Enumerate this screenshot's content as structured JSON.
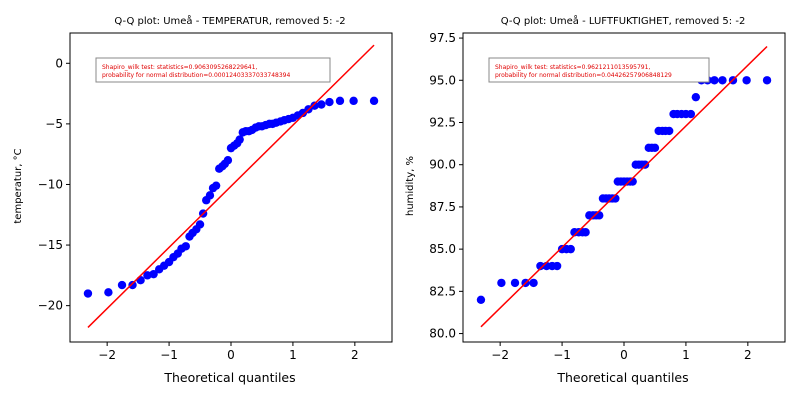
{
  "chart_data": [
    {
      "type": "scatter",
      "title": "Q-Q plot: Umeå - TEMPERATUR, removed 5: -2",
      "xlabel": "Theoretical quantiles",
      "ylabel": "temperatur, °C",
      "xlim": [
        -2.6,
        2.6
      ],
      "ylim": [
        -23,
        2.5
      ],
      "xticks": [
        -2,
        -1,
        0,
        1,
        2
      ],
      "yticks": [
        -20,
        -15,
        -10,
        -5,
        0
      ],
      "grid": false,
      "annotation": [
        "Shapiro_wilk test: statistics=0.9063095268229641,",
        " probability for normal distribution=0.00012403337033748394"
      ],
      "colors": {
        "points": "#0000ff",
        "line": "#ff0000"
      },
      "line": {
        "x": [
          -2.31,
          2.31
        ],
        "y": [
          -21.8,
          1.5
        ]
      },
      "x": [
        -2.31,
        -1.98,
        -1.76,
        -1.59,
        -1.46,
        -1.35,
        -1.25,
        -1.16,
        -1.08,
        -1.0,
        -0.93,
        -0.86,
        -0.8,
        -0.73,
        -0.67,
        -0.62,
        -0.56,
        -0.5,
        -0.45,
        -0.4,
        -0.34,
        -0.29,
        -0.24,
        -0.19,
        -0.14,
        -0.1,
        -0.05,
        0.0,
        0.05,
        0.1,
        0.14,
        0.19,
        0.24,
        0.29,
        0.34,
        0.4,
        0.45,
        0.5,
        0.56,
        0.62,
        0.67,
        0.73,
        0.8,
        0.86,
        0.93,
        1.0,
        1.08,
        1.16,
        1.25,
        1.35,
        1.46,
        1.59,
        1.76,
        1.98,
        2.31
      ],
      "y": [
        -19.0,
        -18.9,
        -18.3,
        -18.3,
        -17.9,
        -17.5,
        -17.4,
        -17.0,
        -16.7,
        -16.4,
        -16.0,
        -15.7,
        -15.3,
        -15.1,
        -14.3,
        -14.0,
        -13.7,
        -13.3,
        -12.4,
        -11.3,
        -10.9,
        -10.3,
        -10.1,
        -8.7,
        -8.5,
        -8.3,
        -8.0,
        -7.0,
        -6.8,
        -6.6,
        -6.3,
        -5.7,
        -5.6,
        -5.6,
        -5.5,
        -5.3,
        -5.2,
        -5.2,
        -5.1,
        -5.0,
        -5.0,
        -4.9,
        -4.8,
        -4.7,
        -4.6,
        -4.5,
        -4.3,
        -4.1,
        -3.8,
        -3.5,
        -3.4,
        -3.2,
        -3.1,
        -3.1,
        -3.1
      ]
    },
    {
      "type": "scatter",
      "title": "Q-Q plot: Umeå - LUFTFUKTIGHET, removed 5: -2",
      "xlabel": "Theoretical quantiles",
      "ylabel": "humidity, %",
      "xlim": [
        -2.6,
        2.6
      ],
      "ylim": [
        79.5,
        97.8
      ],
      "xticks": [
        -2,
        -1,
        0,
        1,
        2
      ],
      "yticks": [
        80.0,
        82.5,
        85.0,
        87.5,
        90.0,
        92.5,
        95.0,
        97.5
      ],
      "ytick_labels": [
        "80.0",
        "82.5",
        "85.0",
        "87.5",
        "90.0",
        "92.5",
        "95.0",
        "97.5"
      ],
      "grid": false,
      "annotation": [
        "Shapiro_wilk test: statistics=0.9621211013595791,",
        " probability for normal distribution=0.04426257906848129"
      ],
      "colors": {
        "points": "#0000ff",
        "line": "#ff0000"
      },
      "line": {
        "x": [
          -2.31,
          2.31
        ],
        "y": [
          80.4,
          97.0
        ]
      },
      "x": [
        -2.31,
        -1.98,
        -1.76,
        -1.59,
        -1.46,
        -1.35,
        -1.25,
        -1.16,
        -1.08,
        -1.0,
        -0.93,
        -0.86,
        -0.8,
        -0.73,
        -0.67,
        -0.62,
        -0.56,
        -0.5,
        -0.45,
        -0.4,
        -0.34,
        -0.29,
        -0.24,
        -0.19,
        -0.14,
        -0.1,
        -0.05,
        0.0,
        0.05,
        0.1,
        0.14,
        0.19,
        0.24,
        0.29,
        0.34,
        0.4,
        0.45,
        0.5,
        0.56,
        0.62,
        0.67,
        0.73,
        0.8,
        0.86,
        0.93,
        1.0,
        1.08,
        1.16,
        1.25,
        1.35,
        1.46,
        1.59,
        1.76,
        1.98,
        2.31
      ],
      "y": [
        82,
        83,
        83,
        83,
        83,
        84,
        84,
        84,
        84,
        85,
        85,
        85,
        86,
        86,
        86,
        86,
        87,
        87,
        87,
        87,
        88,
        88,
        88,
        88,
        88,
        89,
        89,
        89,
        89,
        89,
        89,
        90,
        90,
        90,
        90,
        91,
        91,
        91,
        92,
        92,
        92,
        92,
        93,
        93,
        93,
        93,
        93,
        94,
        95,
        95,
        95,
        95,
        95,
        95,
        95
      ]
    }
  ]
}
